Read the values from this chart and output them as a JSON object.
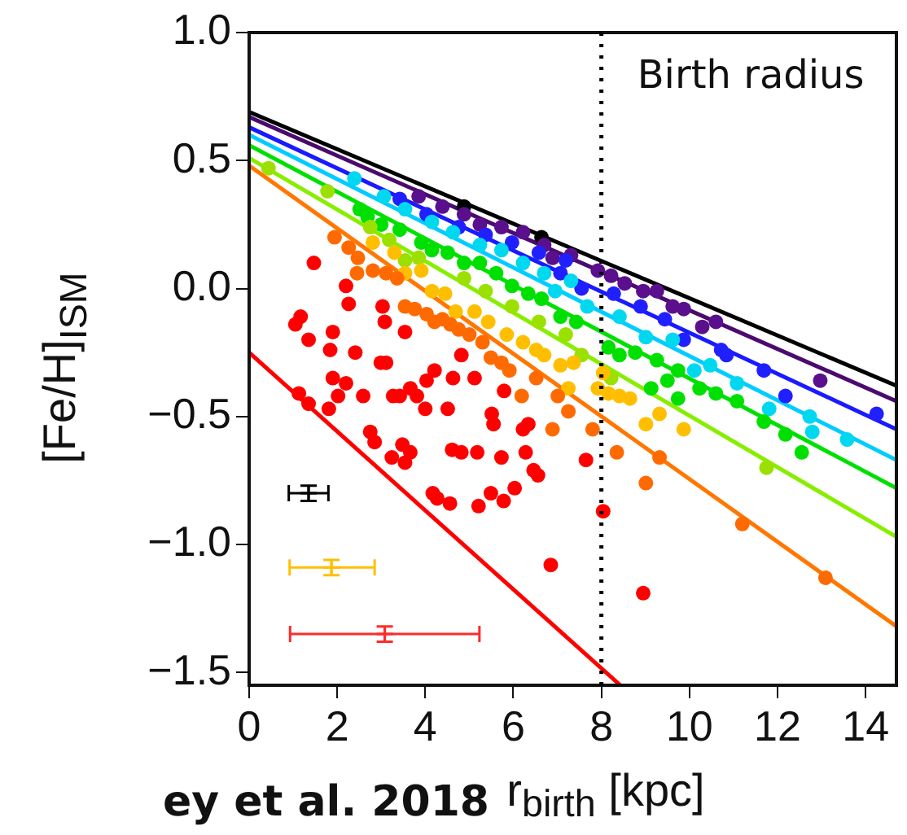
{
  "chart_data": {
    "type": "scatter",
    "xlabel": "r$_{birth}$ [kpc]",
    "ylabel": "[Fe/H]$_{ISM}$",
    "xlim": [
      0,
      14.7
    ],
    "xticks": [
      0,
      2,
      4,
      6,
      8,
      10,
      12,
      14
    ],
    "ylim": [
      -1.55,
      1.0
    ],
    "yticks": [
      {
        "value": -1.5,
        "label": "−1.5"
      },
      {
        "value": -1.0,
        "label": "−1.0"
      },
      {
        "value": -0.5,
        "label": "−0.5"
      },
      {
        "value": 0,
        "label": "0.0"
      },
      {
        "value": 0.5,
        "label": "0.5"
      },
      {
        "value": 1.0,
        "label": "1.0"
      }
    ],
    "grid": false,
    "legend": false,
    "marker": "circle",
    "ref_lines": [
      {
        "axis": "x",
        "value": 8,
        "label": "Birth radius",
        "color": "#000000",
        "line_style": "dotted"
      }
    ],
    "annotations": [
      "ey et al. 2018"
    ],
    "series": [
      {
        "type": "scatter",
        "color": "#ff0000",
        "x": [
          1.47,
          1.17,
          1.05,
          1.35,
          1.84,
          1.9,
          2.41,
          2.26,
          2.2,
          3.03,
          3.08,
          3.54,
          3.11,
          2.99,
          1.13,
          1.35,
          1.81,
          2.02,
          1.9,
          2.2,
          2.59,
          2.75,
          2.85,
          3.24,
          3.48,
          3.54,
          3.66,
          3.27,
          3.42,
          3.66,
          3.81,
          4.03,
          4.0,
          4.21,
          4.51,
          4.63,
          4.17,
          4.27,
          4.56,
          4.61,
          4.82,
          5.18,
          5.21,
          5.49,
          5.73,
          5.78,
          6.03,
          6.28,
          6.46,
          6.56,
          6.22,
          6.34,
          5.55,
          5.51,
          5.79,
          5.12,
          4.82,
          6.85,
          8.04,
          7.65,
          8.95
        ],
        "values": [
          0.1,
          -0.11,
          -0.14,
          -0.2,
          -0.24,
          -0.17,
          -0.25,
          -0.06,
          0.01,
          -0.07,
          -0.13,
          -0.17,
          -0.29,
          -0.29,
          -0.41,
          -0.45,
          -0.47,
          -0.42,
          -0.35,
          -0.37,
          -0.42,
          -0.56,
          -0.6,
          -0.66,
          -0.61,
          -0.68,
          -0.64,
          -0.42,
          -0.42,
          -0.39,
          -0.42,
          -0.36,
          -0.47,
          -0.32,
          -0.47,
          -0.35,
          -0.8,
          -0.82,
          -0.84,
          -0.63,
          -0.64,
          -0.64,
          -0.85,
          -0.8,
          -0.66,
          -0.83,
          -0.78,
          -0.64,
          -0.71,
          -0.73,
          -0.55,
          -0.53,
          -0.53,
          -0.49,
          -0.4,
          -0.35,
          -0.26,
          -1.08,
          -0.87,
          -0.67,
          -1.19
        ]
      },
      {
        "type": "scatter",
        "color": "#ff6a00",
        "x": [
          1.94,
          2.47,
          2.26,
          2.81,
          2.45,
          3.11,
          3.36,
          3.54,
          3.76,
          4.03,
          4.21,
          4.39,
          4.57,
          4.76,
          5.0,
          5.3,
          5.49,
          5.73,
          5.91,
          6.19,
          6.52,
          7.01,
          7.25,
          6.89,
          7.8,
          8.35,
          9.32,
          9.01,
          11.2,
          13.09
        ],
        "values": [
          0.2,
          0.12,
          0.16,
          0.07,
          0.06,
          0.06,
          0.04,
          -0.07,
          -0.08,
          -0.1,
          -0.13,
          -0.12,
          -0.14,
          -0.16,
          -0.18,
          -0.21,
          -0.27,
          -0.29,
          -0.32,
          -0.42,
          -0.35,
          -0.42,
          -0.48,
          -0.55,
          -0.55,
          -0.64,
          -0.66,
          -0.76,
          -0.92,
          -1.13
        ]
      },
      {
        "type": "scatter",
        "color": "#ffbf00",
        "x": [
          2.81,
          3.3,
          3.54,
          3.91,
          4.15,
          4.45,
          4.69,
          5.12,
          5.43,
          5.85,
          6.22,
          6.52,
          6.7,
          7.07,
          7.25,
          7.37,
          7.92,
          8.16,
          8.41,
          8.65,
          9.01,
          9.32,
          9.87,
          8.04
        ],
        "values": [
          0.18,
          0.14,
          0.06,
          0.07,
          -0.01,
          -0.02,
          -0.09,
          -0.09,
          -0.13,
          -0.18,
          -0.21,
          -0.24,
          -0.26,
          -0.3,
          -0.39,
          -0.29,
          -0.39,
          -0.41,
          -0.42,
          -0.43,
          -0.53,
          -0.49,
          -0.55,
          -0.33
        ]
      },
      {
        "type": "scatter",
        "color": "#9be000",
        "x": [
          0.44,
          1.78,
          2.75,
          3.18,
          3.54,
          3.85,
          4.88,
          5.37,
          5.97,
          6.58,
          7.19,
          7.55,
          8.22,
          11.75
        ],
        "values": [
          0.47,
          0.38,
          0.24,
          0.19,
          0.11,
          0.12,
          0.04,
          -0.01,
          -0.07,
          -0.13,
          -0.18,
          -0.26,
          -0.35,
          -0.7
        ]
      },
      {
        "type": "scatter",
        "color": "#00e000",
        "x": [
          2.51,
          2.69,
          3.0,
          3.42,
          3.91,
          4.15,
          4.51,
          4.88,
          5.24,
          5.61,
          5.97,
          6.34,
          6.64,
          7.07,
          7.43,
          8.16,
          8.41,
          8.77,
          9.26,
          9.74,
          10.23,
          10.6,
          11.08,
          11.69,
          12.18,
          12.55,
          9.13,
          9.74,
          9.5
        ],
        "values": [
          0.31,
          0.28,
          0.25,
          0.23,
          0.18,
          0.15,
          0.14,
          0.1,
          0.1,
          0.06,
          0.01,
          -0.02,
          -0.04,
          -0.11,
          -0.13,
          -0.23,
          -0.26,
          -0.25,
          -0.28,
          -0.32,
          -0.39,
          -0.41,
          -0.44,
          -0.52,
          -0.57,
          -0.64,
          -0.39,
          -0.43,
          -0.36
        ]
      },
      {
        "type": "scatter",
        "color": "#00d8f0",
        "x": [
          2.39,
          3.06,
          3.54,
          4.15,
          4.63,
          5.24,
          5.73,
          6.22,
          6.7,
          7.31,
          6.95,
          7.68,
          8.41,
          9.01,
          9.62,
          10.11,
          10.47,
          11.08,
          11.81,
          12.73,
          13.58,
          12.79
        ],
        "values": [
          0.43,
          0.36,
          0.31,
          0.26,
          0.22,
          0.17,
          0.15,
          0.1,
          0.06,
          0.03,
          -0.01,
          -0.07,
          -0.11,
          -0.19,
          -0.2,
          -0.32,
          -0.3,
          -0.37,
          -0.47,
          -0.5,
          -0.59,
          -0.56
        ]
      },
      {
        "type": "scatter",
        "color": "#2020ff",
        "x": [
          3.42,
          4.03,
          4.76,
          5.37,
          5.97,
          6.58,
          7.19,
          7.07,
          7.55,
          8.28,
          8.89,
          9.44,
          9.87,
          10.72,
          10.84,
          11.69,
          12.18,
          14.25
        ],
        "values": [
          0.35,
          0.29,
          0.24,
          0.21,
          0.18,
          0.14,
          0.11,
          0.06,
          0.0,
          -0.02,
          -0.07,
          -0.12,
          -0.2,
          -0.24,
          -0.26,
          -0.32,
          -0.42,
          -0.49
        ]
      },
      {
        "type": "scatter",
        "color": "#5a0f8c",
        "x": [
          3.85,
          4.39,
          4.88,
          5.24,
          5.73,
          6.22,
          6.7,
          7.31,
          6.89,
          7.92,
          8.22,
          8.53,
          8.95,
          9.26,
          9.62,
          9.87,
          10.29,
          10.6,
          12.97
        ],
        "values": [
          0.36,
          0.32,
          0.29,
          0.25,
          0.24,
          0.22,
          0.17,
          0.13,
          0.12,
          0.07,
          0.05,
          0.02,
          -0.01,
          -0.01,
          -0.07,
          -0.08,
          -0.15,
          -0.13,
          -0.36
        ]
      },
      {
        "type": "scatter",
        "color": "#000000",
        "x": [
          4.88,
          6.64
        ],
        "values": [
          0.32,
          0.2
        ]
      },
      {
        "type": "line",
        "marker": "none",
        "color": "#000000",
        "x": [
          0,
          14.7
        ],
        "values": [
          0.69,
          -0.38
        ]
      },
      {
        "type": "line",
        "marker": "none",
        "color": "#4b0a6e",
        "x": [
          0,
          14.7
        ],
        "values": [
          0.67,
          -0.44
        ]
      },
      {
        "type": "line",
        "marker": "none",
        "color": "#1a1aff",
        "x": [
          0,
          14.7
        ],
        "values": [
          0.63,
          -0.55
        ]
      },
      {
        "type": "line",
        "marker": "none",
        "color": "#00ccff",
        "x": [
          0,
          14.7
        ],
        "values": [
          0.6,
          -0.67
        ]
      },
      {
        "type": "line",
        "marker": "none",
        "color": "#00e000",
        "x": [
          0,
          14.7
        ],
        "values": [
          0.56,
          -0.78
        ]
      },
      {
        "type": "line",
        "marker": "none",
        "color": "#88ee00",
        "x": [
          0,
          14.7
        ],
        "values": [
          0.51,
          -0.97
        ]
      },
      {
        "type": "line",
        "marker": "none",
        "color": "#ff7700",
        "x": [
          0,
          14.7
        ],
        "values": [
          0.48,
          -1.32
        ]
      },
      {
        "type": "line",
        "marker": "none",
        "color": "#ff0000",
        "x": [
          0,
          8.43
        ],
        "values": [
          -0.25,
          -1.55
        ]
      },
      {
        "type": "scatter",
        "marker": "cross",
        "color": "#000000",
        "x": [
          1.35
        ],
        "values": [
          -0.8
        ],
        "xerrors": [
          0.45
        ],
        "errors": [
          0.03
        ]
      },
      {
        "type": "scatter",
        "marker": "cross",
        "color": "#ffbf00",
        "x": [
          1.87
        ],
        "values": [
          -1.09
        ],
        "xerrors": [
          [
            0.92,
            2.85
          ]
        ],
        "errors": [
          0.03
        ]
      },
      {
        "type": "scatter",
        "marker": "cross",
        "color": "#ff2a2a",
        "x": [
          3.08
        ],
        "values": [
          -1.35
        ],
        "xerrors": [
          [
            0.93,
            5.23
          ]
        ],
        "errors": [
          0.03
        ]
      }
    ]
  }
}
